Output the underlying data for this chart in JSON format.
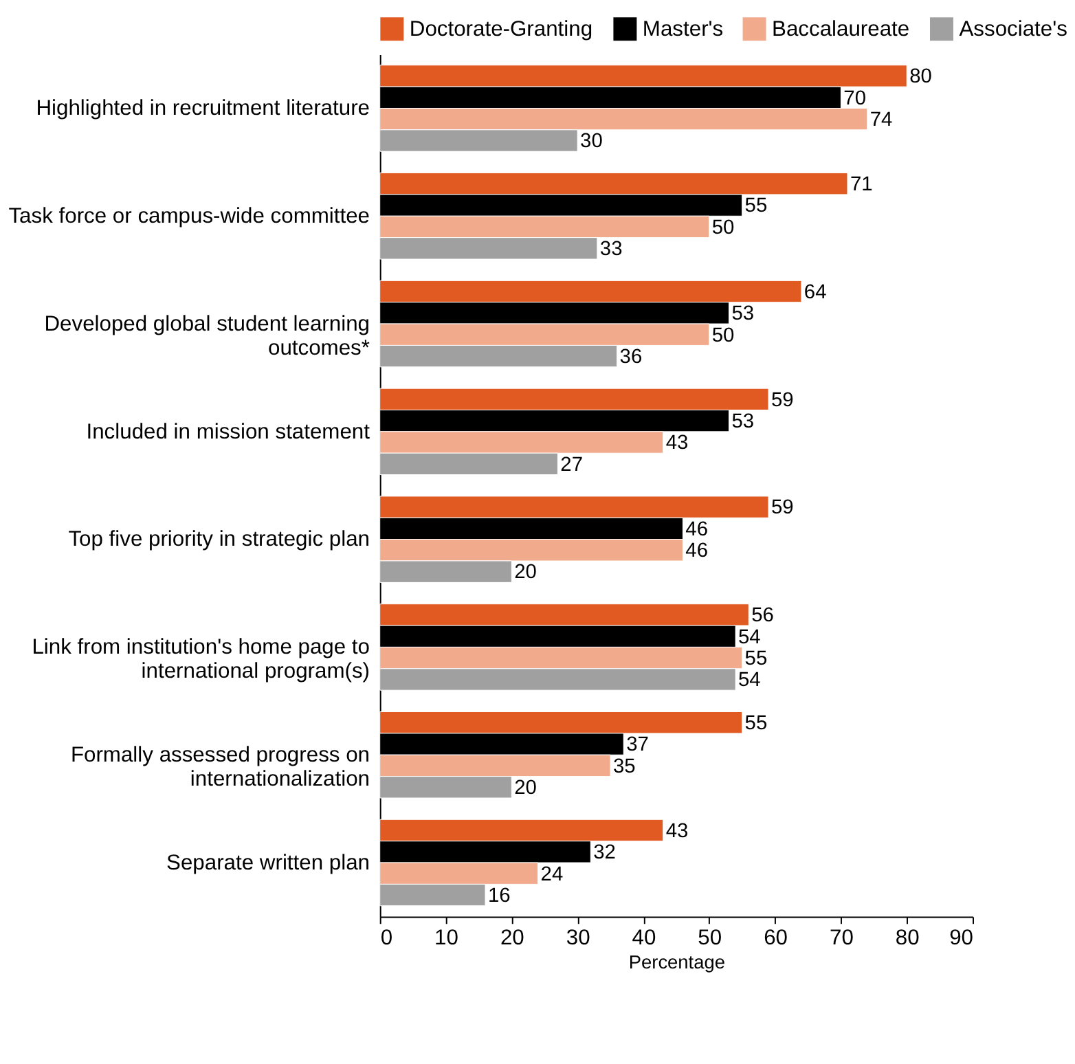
{
  "chart_data": {
    "type": "bar",
    "orientation": "horizontal",
    "xlabel": "Percentage",
    "categories": [
      "Highlighted in recruitment literature",
      "Task force or campus-wide committee",
      "Developed global student learning outcomes*",
      "Included in mission statement",
      "Top five priority in strategic plan",
      "Link from institution's home page to international program(s)",
      "Formally assessed progress on internationalization",
      "Separate written plan"
    ],
    "series": [
      {
        "name": "Doctorate-Granting",
        "color": "#e05a22",
        "values": [
          80,
          71,
          64,
          59,
          59,
          56,
          55,
          43
        ]
      },
      {
        "name": "Master's",
        "color": "#000000",
        "values": [
          70,
          55,
          53,
          53,
          46,
          54,
          37,
          32
        ]
      },
      {
        "name": "Baccalaureate",
        "color": "#f2aa8c",
        "values": [
          74,
          50,
          50,
          43,
          46,
          55,
          35,
          24
        ]
      },
      {
        "name": "Associate's",
        "color": "#a0a0a0",
        "values": [
          30,
          33,
          36,
          27,
          20,
          54,
          20,
          16
        ]
      }
    ],
    "xlim": [
      0,
      90
    ],
    "xticks": [
      0,
      10,
      20,
      30,
      40,
      50,
      60,
      70,
      80,
      90
    ],
    "data_labels": true,
    "legend": "top",
    "grid": false
  }
}
